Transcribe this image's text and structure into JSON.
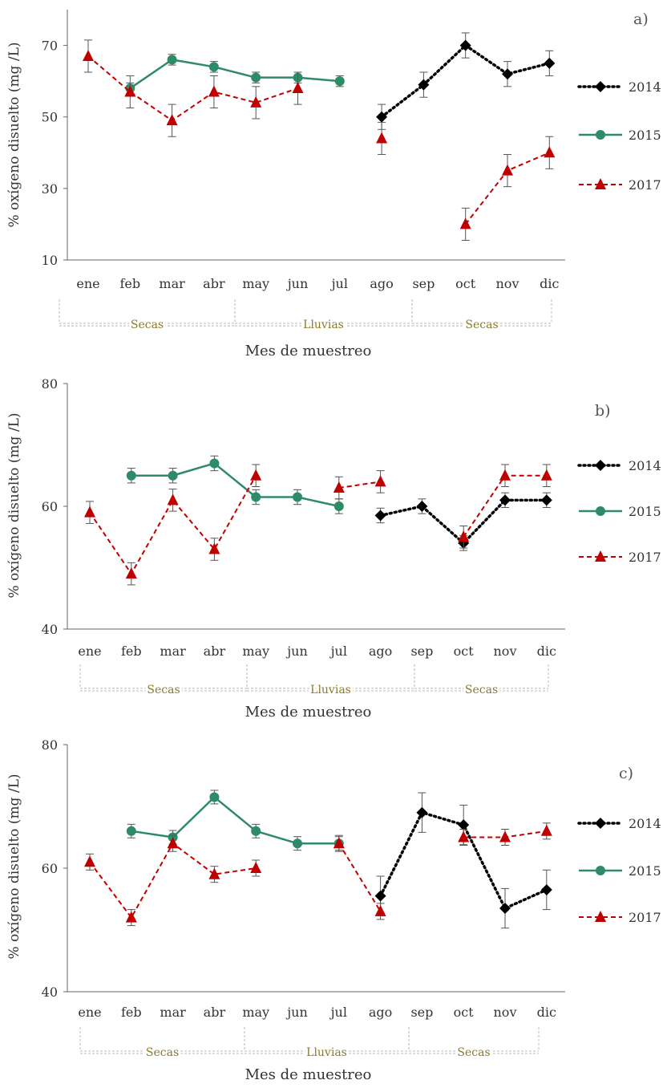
{
  "colors": {
    "s2014": "#000000",
    "s2015": "#2e8b68",
    "s2017": "#c00000",
    "season": "#8a7a2a",
    "axis": "#666666"
  },
  "chart_data": [
    {
      "type": "line",
      "panel_label": "a)",
      "ylabel": "% oxígeno disuelto (mg /L)",
      "xlabel": "Mes de muestreo",
      "ylim": [
        10,
        80
      ],
      "yticks": [
        10,
        30,
        50,
        70
      ],
      "categories": [
        "ene",
        "feb",
        "mar",
        "abr",
        "may",
        "jun",
        "jul",
        "ago",
        "sep",
        "oct",
        "nov",
        "dic"
      ],
      "seasons": [
        "Secas",
        "Lluvias",
        "Secas"
      ],
      "series": [
        {
          "name": "2014",
          "values": [
            null,
            null,
            null,
            null,
            null,
            null,
            null,
            50,
            59,
            70,
            62,
            65
          ],
          "errors": [
            0,
            0,
            0,
            0,
            0,
            0,
            0,
            3.5,
            3.5,
            3.5,
            3.5,
            3.5
          ]
        },
        {
          "name": "2015",
          "values": [
            null,
            58,
            66,
            64,
            61,
            61,
            60,
            null,
            null,
            null,
            null,
            null
          ],
          "errors": [
            0,
            1.5,
            1.5,
            1.5,
            1.5,
            1.5,
            1.5,
            0,
            0,
            0,
            0,
            0
          ]
        },
        {
          "name": "2017",
          "values": [
            67,
            57,
            49,
            57,
            54,
            58,
            null,
            44,
            null,
            20,
            35,
            40
          ],
          "errors": [
            4.5,
            4.5,
            4.5,
            4.5,
            4.5,
            4.5,
            0,
            4.5,
            0,
            4.5,
            4.5,
            4.5
          ]
        }
      ]
    },
    {
      "type": "line",
      "panel_label": "b)",
      "ylabel": "% oxígeno disuelto (mg /L)",
      "xlabel": "Mes de muestreo",
      "ylim": [
        40,
        80
      ],
      "yticks": [
        40,
        60,
        80
      ],
      "categories": [
        "ene",
        "feb",
        "mar",
        "abr",
        "may",
        "jun",
        "jul",
        "ago",
        "sep",
        "oct",
        "nov",
        "dic"
      ],
      "seasons": [
        "Secas",
        "Lluvias",
        "Secas"
      ],
      "series": [
        {
          "name": "2014",
          "values": [
            null,
            null,
            null,
            null,
            null,
            null,
            null,
            58.5,
            60,
            54,
            61,
            61
          ],
          "errors": [
            0,
            0,
            0,
            0,
            0,
            0,
            0,
            1.2,
            1.2,
            1.2,
            1.2,
            1.2
          ]
        },
        {
          "name": "2015",
          "values": [
            null,
            65,
            65,
            67,
            61.5,
            61.5,
            60,
            null,
            null,
            null,
            null,
            null
          ],
          "errors": [
            0,
            1.2,
            1.2,
            1.2,
            1.2,
            1.2,
            1.2,
            0,
            0,
            0,
            0,
            0
          ]
        },
        {
          "name": "2017",
          "values": [
            59,
            49,
            61,
            53,
            65,
            null,
            63,
            64,
            null,
            55,
            65,
            65
          ],
          "errors": [
            1.8,
            1.8,
            1.8,
            1.8,
            1.8,
            0,
            1.8,
            1.8,
            0,
            1.8,
            1.8,
            1.8
          ]
        }
      ]
    },
    {
      "type": "line",
      "panel_label": "c)",
      "ylabel": "% oxígeno disuelto (mg /L)",
      "xlabel": "Mes de muestreo",
      "ylim": [
        40,
        80
      ],
      "yticks": [
        40,
        60,
        80
      ],
      "categories": [
        "ene",
        "feb",
        "mar",
        "abr",
        "may",
        "jun",
        "jul",
        "ago",
        "sep",
        "oct",
        "nov",
        "dic"
      ],
      "seasons": [
        "Secas",
        "Lluvias",
        "Secas"
      ],
      "series": [
        {
          "name": "2014",
          "values": [
            null,
            null,
            null,
            null,
            null,
            null,
            null,
            55.5,
            69,
            67,
            53.5,
            56.5
          ],
          "errors": [
            0,
            0,
            0,
            0,
            0,
            0,
            0,
            3.2,
            3.2,
            3.2,
            3.2,
            3.2
          ]
        },
        {
          "name": "2015",
          "values": [
            null,
            66,
            65,
            71.5,
            66,
            64,
            64,
            null,
            null,
            null,
            null,
            null
          ],
          "errors": [
            0,
            1.1,
            1.1,
            1.1,
            1.1,
            1.1,
            1.1,
            0,
            0,
            0,
            0,
            0
          ]
        },
        {
          "name": "2017",
          "values": [
            61,
            52,
            64,
            59,
            60,
            null,
            64,
            53,
            null,
            65,
            65,
            66
          ],
          "errors": [
            1.3,
            1.3,
            1.3,
            1.3,
            1.3,
            0,
            1.3,
            1.3,
            0,
            1.3,
            1.3,
            1.3
          ]
        }
      ]
    }
  ]
}
